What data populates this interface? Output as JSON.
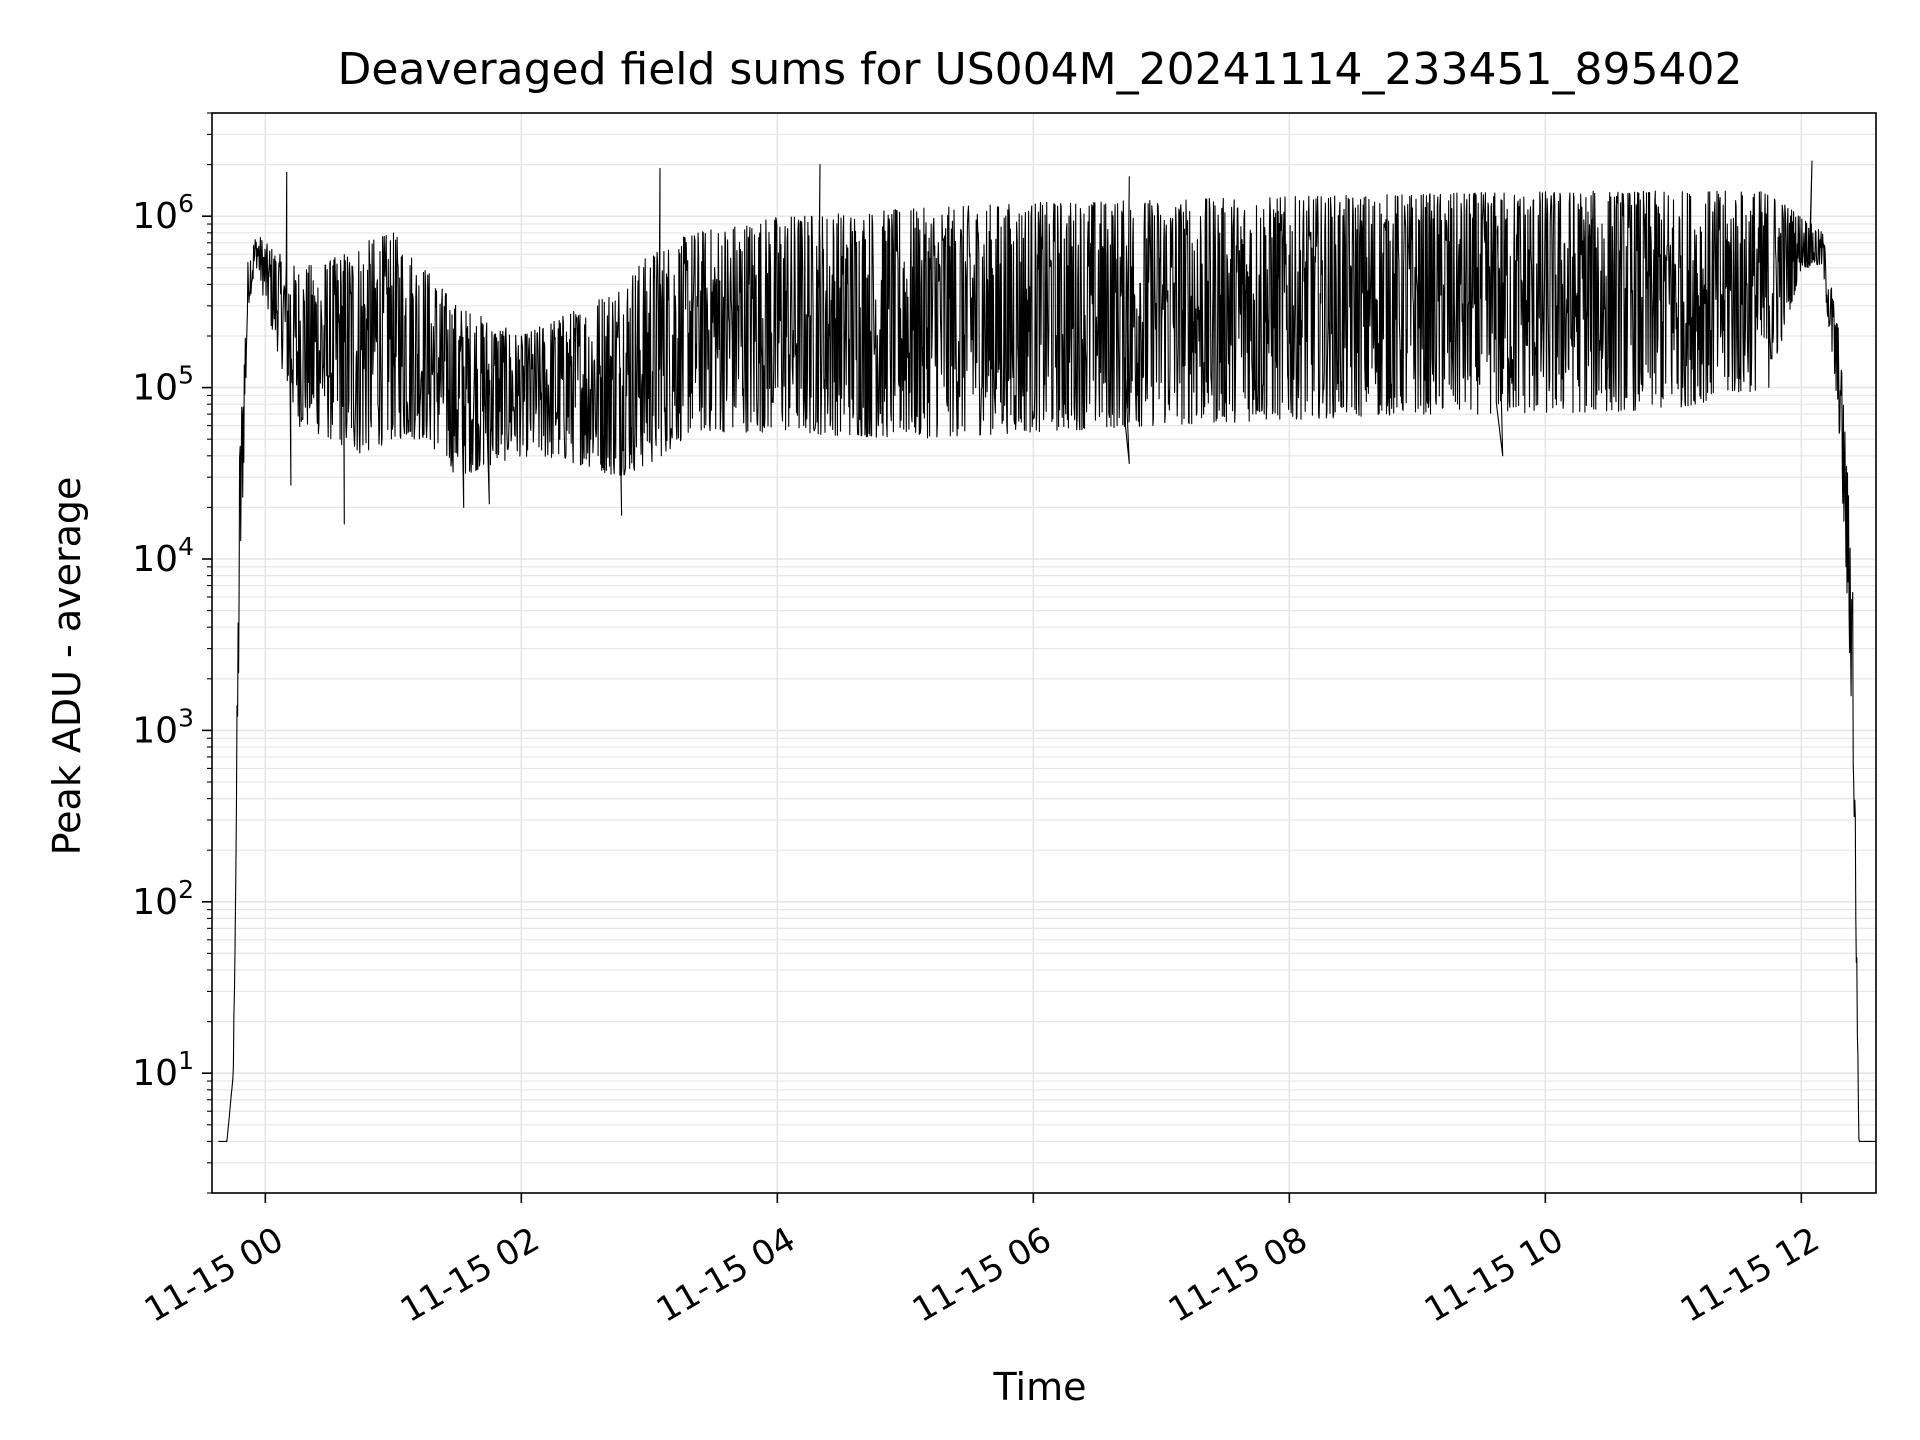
{
  "chart_data": {
    "type": "line",
    "title": "Deaveraged field sums for US004M_20241114_233451_895402",
    "xlabel": "Time",
    "ylabel": "Peak ADU - average",
    "yscale": "log",
    "grid": true,
    "legend": "none",
    "line_color": "#000000",
    "grid_color": "#e6e6e6",
    "xlim": [
      "2024-11-14T23:35",
      "2024-11-15T12:35"
    ],
    "ylim": [
      2,
      4000000
    ],
    "x_ticks": [
      "2024-11-15T00:00",
      "2024-11-15T02:00",
      "2024-11-15T04:00",
      "2024-11-15T06:00",
      "2024-11-15T08:00",
      "2024-11-15T10:00",
      "2024-11-15T12:00"
    ],
    "x_tick_labels": [
      "11-15 00",
      "11-15 02",
      "11-15 04",
      "11-15 06",
      "11-15 08",
      "11-15 10",
      "11-15 12"
    ],
    "y_ticks": [
      10,
      100,
      1000,
      10000,
      100000,
      1000000
    ],
    "y_tick_labels": [
      {
        "base": "10",
        "exp": "1"
      },
      {
        "base": "10",
        "exp": "2"
      },
      {
        "base": "10",
        "exp": "3"
      },
      {
        "base": "10",
        "exp": "4"
      },
      {
        "base": "10",
        "exp": "5"
      },
      {
        "base": "10",
        "exp": "6"
      }
    ],
    "series": [
      {
        "envelope_lower": [
          [
            "2024-11-14T23:38",
            4
          ],
          [
            "2024-11-14T23:42",
            4
          ],
          [
            "2024-11-14T23:45",
            10
          ],
          [
            "2024-11-14T23:48",
            5000
          ],
          [
            "2024-11-14T23:52",
            300000
          ],
          [
            "2024-11-14T23:56",
            500000
          ],
          [
            "2024-11-15T00:00",
            300000
          ],
          [
            "2024-11-15T00:15",
            60000
          ],
          [
            "2024-11-15T00:30",
            50000
          ],
          [
            "2024-11-15T00:45",
            40000
          ],
          [
            "2024-11-15T01:00",
            50000
          ],
          [
            "2024-11-15T01:15",
            50000
          ],
          [
            "2024-11-15T01:30",
            30000
          ],
          [
            "2024-11-15T01:45",
            35000
          ],
          [
            "2024-11-15T02:00",
            40000
          ],
          [
            "2024-11-15T02:15",
            38000
          ],
          [
            "2024-11-15T02:30",
            35000
          ],
          [
            "2024-11-15T02:45",
            30000
          ],
          [
            "2024-11-15T03:00",
            35000
          ],
          [
            "2024-11-15T03:20",
            55000
          ],
          [
            "2024-11-15T03:40",
            55000
          ],
          [
            "2024-11-15T04:00",
            55000
          ],
          [
            "2024-11-15T05:00",
            50000
          ],
          [
            "2024-11-15T06:00",
            55000
          ],
          [
            "2024-11-15T07:00",
            60000
          ],
          [
            "2024-11-15T08:00",
            65000
          ],
          [
            "2024-11-15T09:00",
            70000
          ],
          [
            "2024-11-15T10:00",
            70000
          ],
          [
            "2024-11-15T11:00",
            75000
          ],
          [
            "2024-11-15T11:45",
            100000
          ],
          [
            "2024-11-15T12:00",
            500000
          ],
          [
            "2024-11-15T12:10",
            500000
          ],
          [
            "2024-11-15T12:18",
            50000
          ],
          [
            "2024-11-15T12:24",
            1000
          ],
          [
            "2024-11-15T12:27",
            4
          ],
          [
            "2024-11-15T12:35",
            4
          ]
        ],
        "envelope_upper": [
          [
            "2024-11-14T23:38",
            4
          ],
          [
            "2024-11-14T23:42",
            4
          ],
          [
            "2024-11-14T23:45",
            10
          ],
          [
            "2024-11-14T23:48",
            50000
          ],
          [
            "2024-11-14T23:52",
            600000
          ],
          [
            "2024-11-14T23:56",
            800000
          ],
          [
            "2024-11-15T00:00",
            700000
          ],
          [
            "2024-11-15T00:15",
            500000
          ],
          [
            "2024-11-15T00:30",
            550000
          ],
          [
            "2024-11-15T00:45",
            700000
          ],
          [
            "2024-11-15T01:00",
            800000
          ],
          [
            "2024-11-15T01:15",
            500000
          ],
          [
            "2024-11-15T01:30",
            300000
          ],
          [
            "2024-11-15T01:45",
            250000
          ],
          [
            "2024-11-15T02:00",
            200000
          ],
          [
            "2024-11-15T02:15",
            250000
          ],
          [
            "2024-11-15T02:30",
            300000
          ],
          [
            "2024-11-15T02:45",
            400000
          ],
          [
            "2024-11-15T03:00",
            600000
          ],
          [
            "2024-11-15T03:20",
            800000
          ],
          [
            "2024-11-15T03:40",
            900000
          ],
          [
            "2024-11-15T04:00",
            1000000
          ],
          [
            "2024-11-15T05:00",
            1100000
          ],
          [
            "2024-11-15T06:00",
            1200000
          ],
          [
            "2024-11-15T07:00",
            1250000
          ],
          [
            "2024-11-15T08:00",
            1300000
          ],
          [
            "2024-11-15T09:00",
            1350000
          ],
          [
            "2024-11-15T10:00",
            1400000
          ],
          [
            "2024-11-15T11:00",
            1400000
          ],
          [
            "2024-11-15T11:45",
            1400000
          ],
          [
            "2024-11-15T12:00",
            1000000
          ],
          [
            "2024-11-15T12:10",
            800000
          ],
          [
            "2024-11-15T12:18",
            200000
          ],
          [
            "2024-11-15T12:24",
            10000
          ],
          [
            "2024-11-15T12:27",
            4
          ],
          [
            "2024-11-15T12:35",
            4
          ]
        ],
        "spikes_high": [
          [
            "2024-11-15T00:10",
            1800000
          ],
          [
            "2024-11-15T03:05",
            1900000
          ],
          [
            "2024-11-15T04:20",
            2000000
          ],
          [
            "2024-11-15T06:45",
            1700000
          ],
          [
            "2024-11-15T12:05",
            2100000
          ]
        ],
        "spikes_low": [
          [
            "2024-11-15T00:37",
            16000
          ],
          [
            "2024-11-15T01:33",
            20000
          ],
          [
            "2024-11-15T01:45",
            21000
          ],
          [
            "2024-11-15T02:47",
            18000
          ],
          [
            "2024-11-15T00:12",
            27000
          ],
          [
            "2024-11-15T06:45",
            36000
          ],
          [
            "2024-11-15T09:40",
            40000
          ]
        ]
      }
    ]
  }
}
